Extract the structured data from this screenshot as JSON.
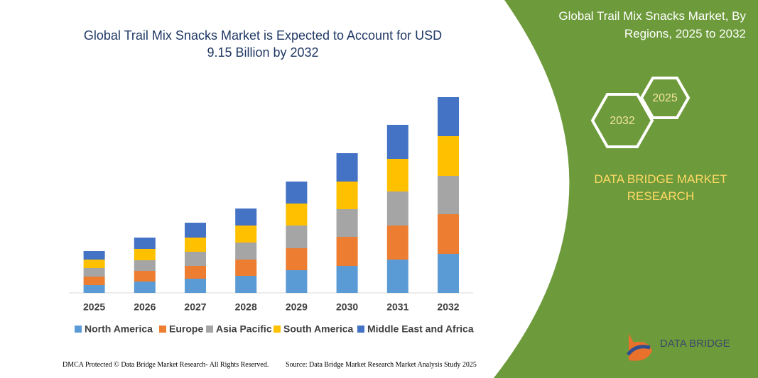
{
  "chart_data": {
    "type": "stacked_bar",
    "title": "Global Trail Mix Snacks Market is Expected to Account for USD 9.15 Billion by 2032",
    "categories": [
      "2025",
      "2026",
      "2027",
      "2028",
      "2029",
      "2030",
      "2031",
      "2032"
    ],
    "series": [
      {
        "name": "North America",
        "color": "#5b9bd5",
        "values": [
          11,
          16,
          20,
          24,
          32,
          38,
          47,
          55
        ]
      },
      {
        "name": "Europe",
        "color": "#ed7d31",
        "values": [
          12,
          15,
          18,
          23,
          31,
          41,
          48,
          56
        ]
      },
      {
        "name": "Asia Pacific",
        "color": "#a5a5a5",
        "values": [
          12,
          15,
          20,
          24,
          32,
          39,
          48,
          54
        ]
      },
      {
        "name": "South America",
        "color": "#ffc000",
        "values": [
          12,
          16,
          20,
          24,
          31,
          39,
          46,
          56
        ]
      },
      {
        "name": "Middle East and Africa",
        "color": "#4472c4",
        "values": [
          12,
          16,
          21,
          24,
          31,
          40,
          48,
          55
        ]
      }
    ]
  },
  "panel": {
    "title": "Global Trail Mix Snacks Market, By Regions, 2025 to 2032",
    "hex_large": "2032",
    "hex_small": "2025",
    "brand": "DATA BRIDGE MARKET RESEARCH",
    "logo": "DATA BRIDGE"
  },
  "footer": {
    "left": "DMCA Protected © Data Bridge Market Research- All Rights Reserved.",
    "right": "Source: Data Bridge Market Research Market Analysis Study 2025"
  }
}
